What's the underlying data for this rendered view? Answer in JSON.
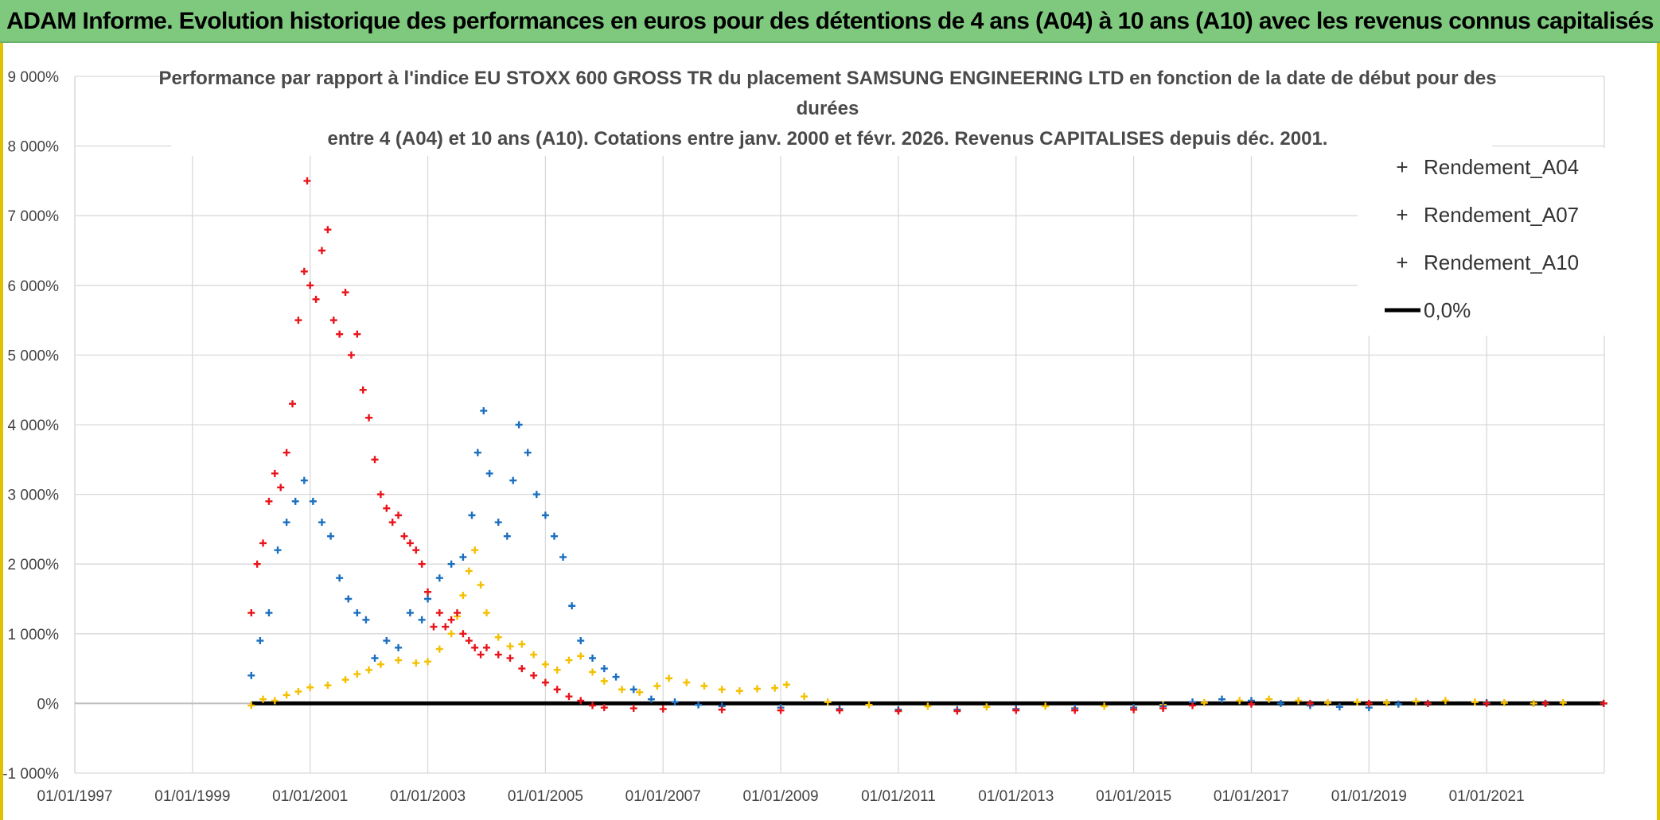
{
  "banner": {
    "title": "ADAM Informe. Evolution historique des performances en euros pour des détentions de 4 ans (A04) à 10 ans (A10) avec les revenus connus capitalisés"
  },
  "colors": {
    "banner_bg": "#7fc97f",
    "frame_accent": "#e2c200",
    "series_a04": "#f5c000",
    "series_a07": "#1a6fbf",
    "series_a10": "#e8141a",
    "zero_line": "#000000",
    "grid": "#d9d9d9"
  },
  "chart_data": {
    "type": "scatter",
    "title_lines": [
      "Performance par rapport à l'indice EU STOXX 600 GROSS TR  du placement SAMSUNG ENGINEERING LTD en fonction de la date de début pour des",
      "durées",
      "entre 4 (A04) et 10 ans (A10). Cotations entre janv. 2000 et févr. 2026. Revenus CAPITALISES depuis déc. 2001."
    ],
    "x_unit": "year",
    "xlim": [
      1997.0,
      2023.0
    ],
    "x_ticks": [
      1997,
      1999,
      2001,
      2003,
      2005,
      2007,
      2009,
      2011,
      2013,
      2015,
      2017,
      2019,
      2021
    ],
    "x_tick_labels": [
      "01/01/1997",
      "01/01/1999",
      "01/01/2001",
      "01/01/2003",
      "01/01/2005",
      "01/01/2007",
      "01/01/2009",
      "01/01/2011",
      "01/01/2013",
      "01/01/2015",
      "01/01/2017",
      "01/01/2019",
      "01/01/2021"
    ],
    "y_unit": "percent",
    "ylim": [
      -1000,
      9000
    ],
    "y_ticks": [
      -1000,
      0,
      1000,
      2000,
      3000,
      4000,
      5000,
      6000,
      7000,
      8000,
      9000
    ],
    "y_tick_labels": [
      "-1 000%",
      "0%",
      "1 000%",
      "2 000%",
      "3 000%",
      "4 000%",
      "5 000%",
      "6 000%",
      "7 000%",
      "8 000%",
      "9 000%"
    ],
    "grid": true,
    "legend_position": "top-right",
    "marker": "+",
    "series": [
      {
        "name": "Rendement_A04",
        "color": "#f5c000",
        "x": [
          2000.0,
          2000.2,
          2000.4,
          2000.6,
          2000.8,
          2001.0,
          2001.3,
          2001.6,
          2001.8,
          2002.0,
          2002.2,
          2002.5,
          2002.8,
          2003.0,
          2003.2,
          2003.4,
          2003.5,
          2003.6,
          2003.7,
          2003.8,
          2003.9,
          2004.0,
          2004.2,
          2004.4,
          2004.6,
          2004.8,
          2005.0,
          2005.2,
          2005.4,
          2005.6,
          2005.8,
          2006.0,
          2006.3,
          2006.6,
          2006.9,
          2007.1,
          2007.4,
          2007.7,
          2008.0,
          2008.3,
          2008.6,
          2008.9,
          2009.1,
          2009.4,
          2009.8,
          2010.5,
          2011.5,
          2012.5,
          2013.5,
          2014.5,
          2015.5,
          2016.2,
          2016.8,
          2017.3,
          2017.8,
          2018.3,
          2018.8,
          2019.3,
          2019.8,
          2020.3,
          2020.8,
          2021.3,
          2021.8,
          2022.3,
          2022.99
        ],
        "y": [
          -30,
          60,
          40,
          120,
          170,
          230,
          260,
          340,
          420,
          480,
          560,
          620,
          580,
          600,
          780,
          1000,
          1250,
          1550,
          1900,
          2200,
          1700,
          1300,
          950,
          820,
          850,
          700,
          560,
          480,
          620,
          680,
          450,
          320,
          200,
          160,
          250,
          360,
          300,
          250,
          200,
          180,
          210,
          220,
          270,
          100,
          20,
          -20,
          -40,
          -50,
          -40,
          -40,
          -20,
          10,
          40,
          60,
          40,
          10,
          20,
          10,
          30,
          40,
          20,
          10,
          0,
          10,
          0
        ]
      },
      {
        "name": "Rendement_A07",
        "color": "#1a6fbf",
        "x": [
          2000.0,
          2000.15,
          2000.3,
          2000.45,
          2000.6,
          2000.75,
          2000.9,
          2001.05,
          2001.2,
          2001.35,
          2001.5,
          2001.65,
          2001.8,
          2001.95,
          2002.1,
          2002.3,
          2002.5,
          2002.7,
          2002.9,
          2003.0,
          2003.2,
          2003.4,
          2003.6,
          2003.75,
          2003.85,
          2003.95,
          2004.05,
          2004.2,
          2004.35,
          2004.45,
          2004.55,
          2004.7,
          2004.85,
          2005.0,
          2005.15,
          2005.3,
          2005.45,
          2005.6,
          2005.8,
          2006.0,
          2006.2,
          2006.5,
          2006.8,
          2007.2,
          2007.6,
          2008.0,
          2009.0,
          2010.0,
          2011.0,
          2012.0,
          2013.0,
          2014.0,
          2015.0,
          2015.5,
          2016.0,
          2016.5,
          2017.0,
          2017.5,
          2018.0,
          2018.5,
          2019.0,
          2019.5,
          2020.0,
          2021.0,
          2022.0,
          2022.99
        ],
        "y": [
          400,
          900,
          1300,
          2200,
          2600,
          2900,
          3200,
          2900,
          2600,
          2400,
          1800,
          1500,
          1300,
          1200,
          650,
          900,
          800,
          1300,
          1200,
          1500,
          1800,
          2000,
          2100,
          2700,
          3600,
          4200,
          3300,
          2600,
          2400,
          3200,
          4000,
          3600,
          3000,
          2700,
          2400,
          2100,
          1400,
          900,
          650,
          500,
          380,
          200,
          60,
          20,
          -20,
          -40,
          -60,
          -80,
          -90,
          -90,
          -80,
          -70,
          -60,
          -40,
          20,
          60,
          40,
          0,
          -30,
          -50,
          -60,
          -10,
          0,
          10,
          0,
          0
        ]
      },
      {
        "name": "Rendement_A10",
        "color": "#e8141a",
        "x": [
          2000.0,
          2000.1,
          2000.2,
          2000.3,
          2000.4,
          2000.5,
          2000.6,
          2000.7,
          2000.8,
          2000.9,
          2000.95,
          2001.0,
          2001.1,
          2001.2,
          2001.3,
          2001.4,
          2001.5,
          2001.6,
          2001.7,
          2001.8,
          2001.9,
          2002.0,
          2002.1,
          2002.2,
          2002.3,
          2002.4,
          2002.5,
          2002.6,
          2002.7,
          2002.8,
          2002.9,
          2003.0,
          2003.1,
          2003.2,
          2003.3,
          2003.4,
          2003.5,
          2003.6,
          2003.7,
          2003.8,
          2003.9,
          2004.0,
          2004.2,
          2004.4,
          2004.6,
          2004.8,
          2005.0,
          2005.2,
          2005.4,
          2005.6,
          2005.8,
          2006.0,
          2006.5,
          2007.0,
          2008.0,
          2009.0,
          2010.0,
          2011.0,
          2012.0,
          2013.0,
          2014.0,
          2015.0,
          2015.5,
          2016.0,
          2017.0,
          2018.0,
          2019.0,
          2020.0,
          2021.0,
          2022.0,
          2022.99
        ],
        "y": [
          1300,
          2000,
          2300,
          2900,
          3300,
          3100,
          3600,
          4300,
          5500,
          6200,
          7500,
          6000,
          5800,
          6500,
          6800,
          5500,
          5300,
          5900,
          5000,
          5300,
          4500,
          4100,
          3500,
          3000,
          2800,
          2600,
          2700,
          2400,
          2300,
          2200,
          2000,
          1600,
          1100,
          1300,
          1100,
          1200,
          1300,
          1000,
          900,
          800,
          700,
          800,
          700,
          650,
          500,
          400,
          300,
          200,
          100,
          40,
          -30,
          -60,
          -70,
          -80,
          -90,
          -100,
          -100,
          -110,
          -110,
          -100,
          -100,
          -90,
          -70,
          -30,
          -10,
          0,
          0,
          0,
          0,
          0,
          0
        ]
      }
    ],
    "reference_line": {
      "name": "0,0%",
      "y": 0,
      "x_start": 2000.0,
      "x_end": 2022.99,
      "color": "#000000"
    },
    "legend": [
      "Rendement_A04",
      "Rendement_A07",
      "Rendement_A10",
      "0,0%"
    ]
  }
}
